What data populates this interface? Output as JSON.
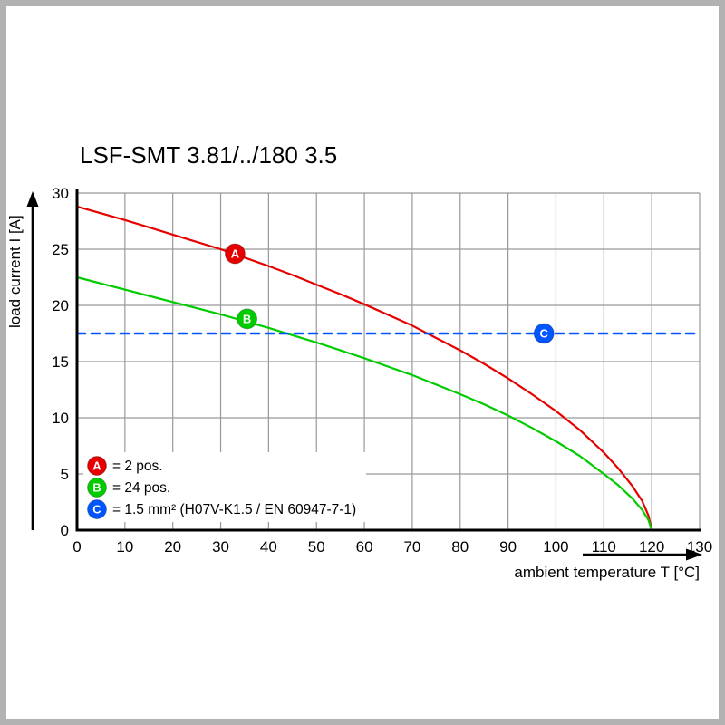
{
  "chart_data": {
    "type": "line",
    "title": "LSF-SMT 3.81/../180 3.5",
    "xlabel": "ambient temperature T [°C]",
    "ylabel": "load current I [A]",
    "xlim": [
      0,
      130
    ],
    "ylim": [
      0,
      30
    ],
    "xticks": [
      0,
      10,
      20,
      30,
      40,
      50,
      60,
      70,
      80,
      90,
      100,
      110,
      120,
      130
    ],
    "yticks": [
      0,
      5,
      10,
      15,
      20,
      25,
      30
    ],
    "grid": true,
    "legend_position": "lower left",
    "colors": {
      "grid": "#999999",
      "axis": "#000000",
      "red": "#e60000",
      "green": "#00cc00",
      "blue": "#0055ff"
    },
    "series": [
      {
        "letter": "A",
        "label": "2 pos.",
        "color": "#e60000",
        "style": "solid",
        "points": [
          [
            0,
            28.8
          ],
          [
            5,
            28.2
          ],
          [
            10,
            27.6
          ],
          [
            15,
            26.95
          ],
          [
            20,
            26.3
          ],
          [
            25,
            25.65
          ],
          [
            30,
            25.0
          ],
          [
            35,
            24.25
          ],
          [
            40,
            23.5
          ],
          [
            45,
            22.7
          ],
          [
            50,
            21.85
          ],
          [
            55,
            21.0
          ],
          [
            60,
            20.1
          ],
          [
            65,
            19.15
          ],
          [
            70,
            18.2
          ],
          [
            75,
            17.1
          ],
          [
            80,
            16.0
          ],
          [
            85,
            14.8
          ],
          [
            90,
            13.5
          ],
          [
            95,
            12.1
          ],
          [
            100,
            10.6
          ],
          [
            105,
            8.9
          ],
          [
            110,
            6.9
          ],
          [
            113,
            5.5
          ],
          [
            116,
            3.9
          ],
          [
            118,
            2.6
          ],
          [
            119.3,
            1.3
          ],
          [
            120,
            0
          ]
        ]
      },
      {
        "letter": "B",
        "label": "24 pos.",
        "color": "#00cc00",
        "style": "solid",
        "points": [
          [
            0,
            22.5
          ],
          [
            5,
            21.95
          ],
          [
            10,
            21.4
          ],
          [
            15,
            20.85
          ],
          [
            20,
            20.3
          ],
          [
            25,
            19.75
          ],
          [
            30,
            19.2
          ],
          [
            35,
            18.6
          ],
          [
            40,
            18.0
          ],
          [
            45,
            17.35
          ],
          [
            50,
            16.7
          ],
          [
            55,
            16.0
          ],
          [
            60,
            15.3
          ],
          [
            65,
            14.55
          ],
          [
            70,
            13.8
          ],
          [
            75,
            12.95
          ],
          [
            80,
            12.1
          ],
          [
            85,
            11.2
          ],
          [
            90,
            10.2
          ],
          [
            95,
            9.1
          ],
          [
            100,
            7.9
          ],
          [
            105,
            6.6
          ],
          [
            110,
            5.0
          ],
          [
            113,
            4.0
          ],
          [
            116,
            2.8
          ],
          [
            118,
            1.8
          ],
          [
            119.3,
            0.9
          ],
          [
            120,
            0
          ]
        ]
      },
      {
        "letter": "C",
        "label": "1.5 mm² (H07V-K1.5 / EN 60947-7-1)",
        "color": "#0055ff",
        "style": "dashed",
        "points": [
          [
            0,
            17.5
          ],
          [
            130,
            17.5
          ]
        ]
      }
    ],
    "markers": [
      {
        "letter": "A",
        "x": 33,
        "y": 24.6,
        "color": "#e60000"
      },
      {
        "letter": "B",
        "x": 35.5,
        "y": 18.8,
        "color": "#00cc00"
      },
      {
        "letter": "C",
        "x": 97.5,
        "y": 17.5,
        "color": "#0055ff"
      }
    ],
    "legend": [
      {
        "letter": "A",
        "color": "#e60000",
        "text": "= 2 pos."
      },
      {
        "letter": "B",
        "color": "#00cc00",
        "text": "= 24 pos."
      },
      {
        "letter": "C",
        "color": "#0055ff",
        "text": "= 1.5 mm² (H07V-K1.5 / EN 60947-7-1)"
      }
    ]
  }
}
